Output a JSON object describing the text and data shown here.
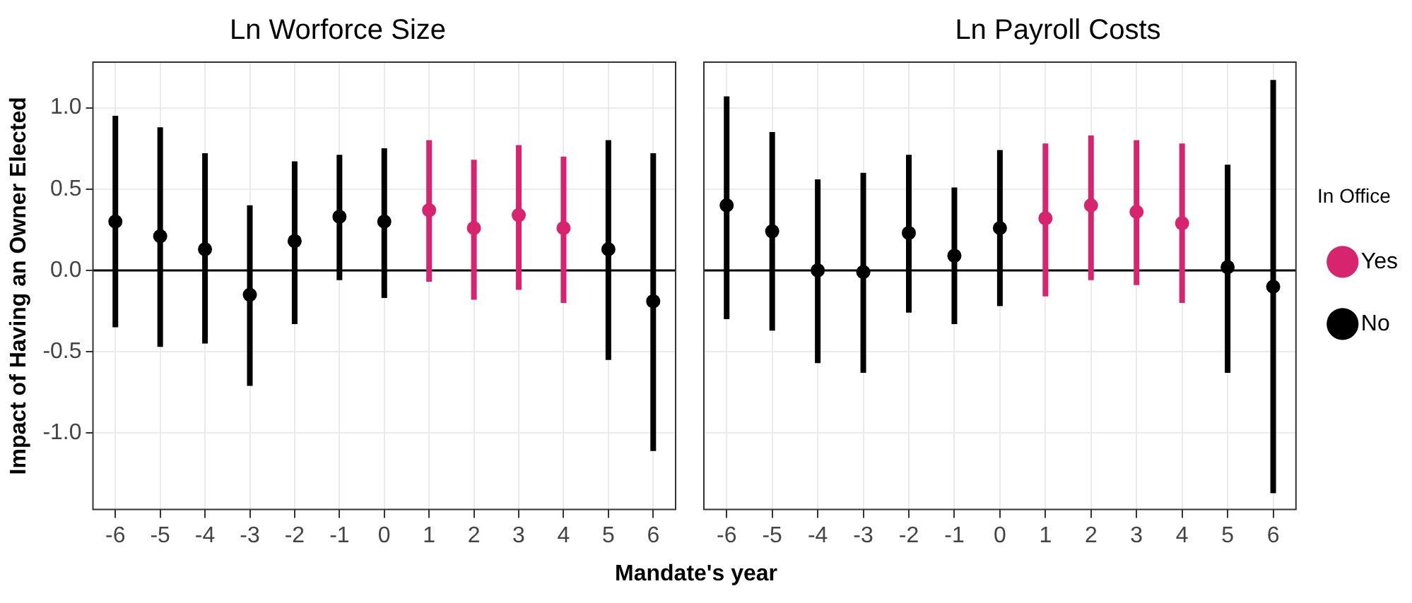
{
  "chart_data": [
    {
      "type": "scatter",
      "title": "Ln Worforce Size",
      "ylabel": "Impact of Having an Owner Elected",
      "xlabel": "Mandate's year",
      "categories": [
        "-6",
        "-5",
        "-4",
        "-3",
        "-2",
        "-1",
        "0",
        "1",
        "2",
        "3",
        "4",
        "5",
        "6"
      ],
      "series": [
        {
          "color": "#d6246e",
          "values": [
            null,
            null,
            null,
            null,
            null,
            null,
            null,
            0.37,
            0.26,
            0.34,
            0.26,
            null,
            null
          ],
          "errors": [
            null,
            null,
            null,
            null,
            null,
            null,
            null,
            [
              -0.07,
              0.8
            ],
            [
              -0.18,
              0.68
            ],
            [
              -0.12,
              0.77
            ],
            [
              -0.2,
              0.7
            ],
            null,
            null
          ]
        },
        {
          "color": "#000000",
          "values": [
            0.3,
            0.21,
            0.13,
            -0.15,
            0.18,
            0.33,
            0.3,
            null,
            null,
            null,
            null,
            0.13,
            -0.19
          ],
          "errors": [
            [
              -0.35,
              0.95
            ],
            [
              -0.47,
              0.88
            ],
            [
              -0.45,
              0.72
            ],
            [
              -0.71,
              0.4
            ],
            [
              -0.33,
              0.67
            ],
            [
              -0.06,
              0.71
            ],
            [
              -0.17,
              0.75
            ],
            null,
            null,
            null,
            null,
            [
              -0.55,
              0.8
            ],
            [
              -1.11,
              0.72
            ]
          ]
        }
      ],
      "ylim": [
        -1.47,
        1.28
      ],
      "yticks": [
        {
          "value": -1,
          "label": "-1.0"
        },
        {
          "value": -0.5,
          "label": "-0.5"
        },
        {
          "value": 0,
          "label": "0.0"
        },
        {
          "value": 0.5,
          "label": "0.5"
        },
        {
          "value": 1,
          "label": "1.0"
        }
      ],
      "ref_lines": [
        {
          "axis": "y",
          "value": 0,
          "color": "#000000"
        }
      ],
      "grid": true,
      "marker": "circle",
      "legend": false
    },
    {
      "type": "scatter",
      "title": "Ln Payroll Costs",
      "legend_title": "In Office",
      "categories": [
        "-6",
        "-5",
        "-4",
        "-3",
        "-2",
        "-1",
        "0",
        "1",
        "2",
        "3",
        "4",
        "5",
        "6"
      ],
      "series": [
        {
          "name": "Yes",
          "color": "#d6246e",
          "values": [
            null,
            null,
            null,
            null,
            null,
            null,
            null,
            0.32,
            0.4,
            0.36,
            0.29,
            null,
            null
          ],
          "errors": [
            null,
            null,
            null,
            null,
            null,
            null,
            null,
            [
              -0.16,
              0.78
            ],
            [
              -0.06,
              0.83
            ],
            [
              -0.09,
              0.8
            ],
            [
              -0.2,
              0.78
            ],
            null,
            null
          ]
        },
        {
          "name": "No",
          "color": "#000000",
          "values": [
            0.4,
            0.24,
            0.0,
            -0.01,
            0.23,
            0.09,
            0.26,
            null,
            null,
            null,
            null,
            0.02,
            -0.1
          ],
          "errors": [
            [
              -0.3,
              1.07
            ],
            [
              -0.37,
              0.85
            ],
            [
              -0.57,
              0.56
            ],
            [
              -0.63,
              0.6
            ],
            [
              -0.26,
              0.71
            ],
            [
              -0.33,
              0.51
            ],
            [
              -0.22,
              0.74
            ],
            null,
            null,
            null,
            null,
            [
              -0.63,
              0.65
            ],
            [
              -1.37,
              1.17
            ]
          ]
        }
      ],
      "ylim": [
        -1.47,
        1.28
      ],
      "yticks": [
        -1,
        -0.5,
        0,
        0.5,
        1
      ],
      "tick_labels": "x",
      "ref_lines": [
        {
          "axis": "y",
          "value": 0,
          "color": "#000000"
        }
      ],
      "grid": true,
      "marker": "circle",
      "legend": "right"
    }
  ]
}
